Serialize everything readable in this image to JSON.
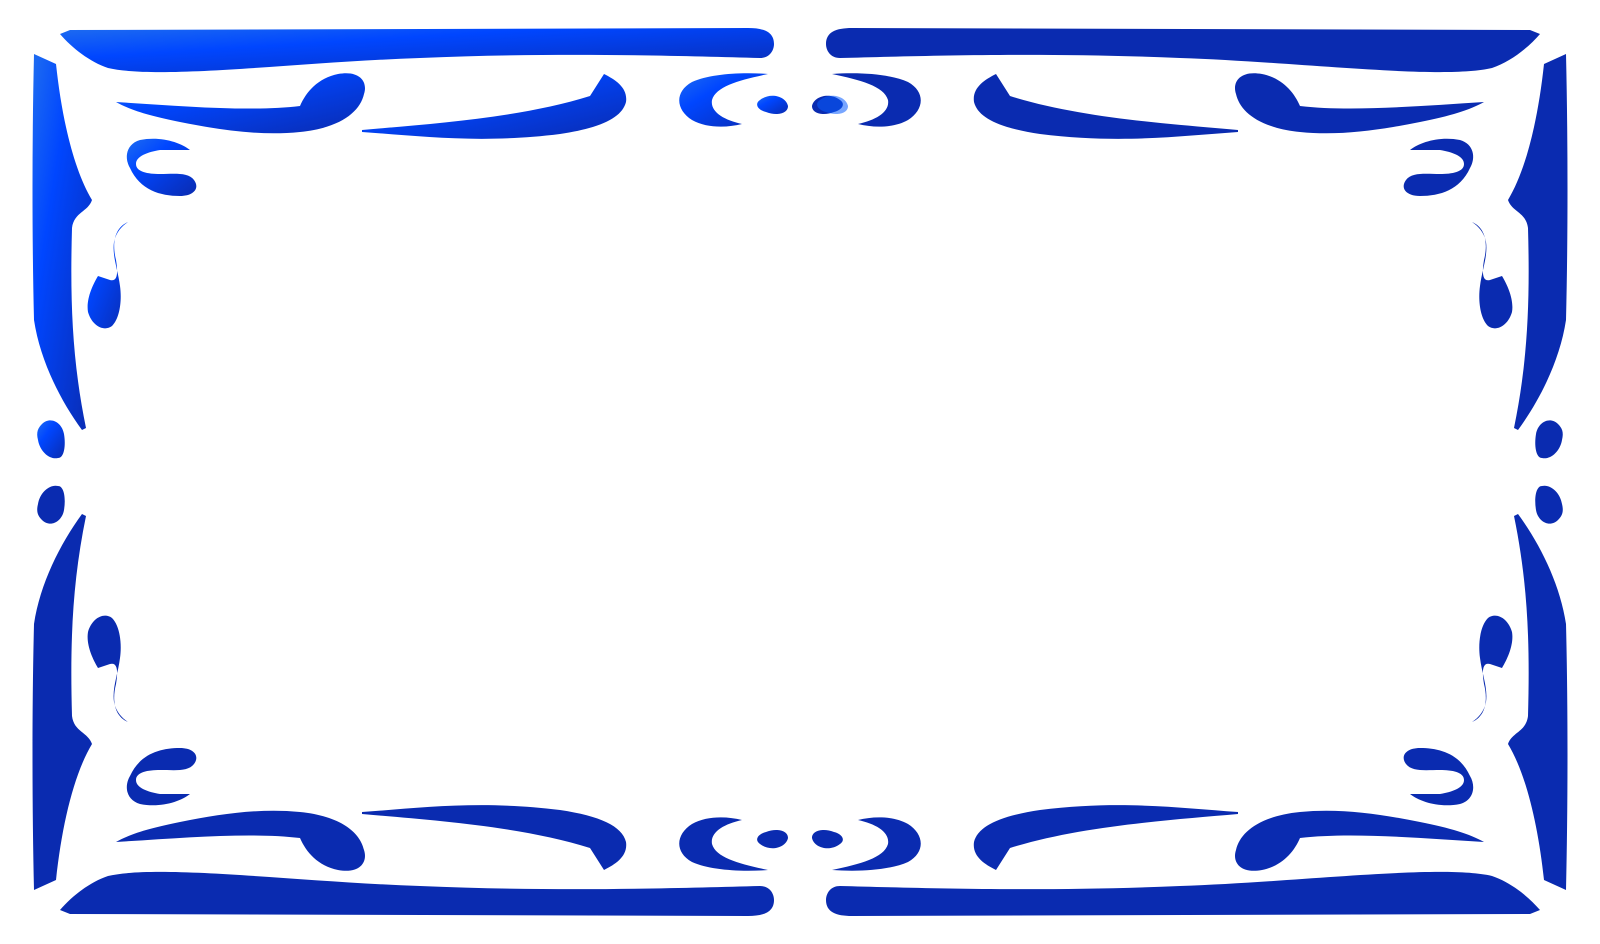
{
  "frame": {
    "style": "ornamental-border",
    "colors": {
      "primary": "#0a2bb0",
      "highlight": "#0a5cff",
      "gradient_start": "#1e6cf0",
      "gradient_mid": "#0046ff",
      "gradient_end": "#0a2bb0",
      "background": "#ffffff"
    }
  }
}
